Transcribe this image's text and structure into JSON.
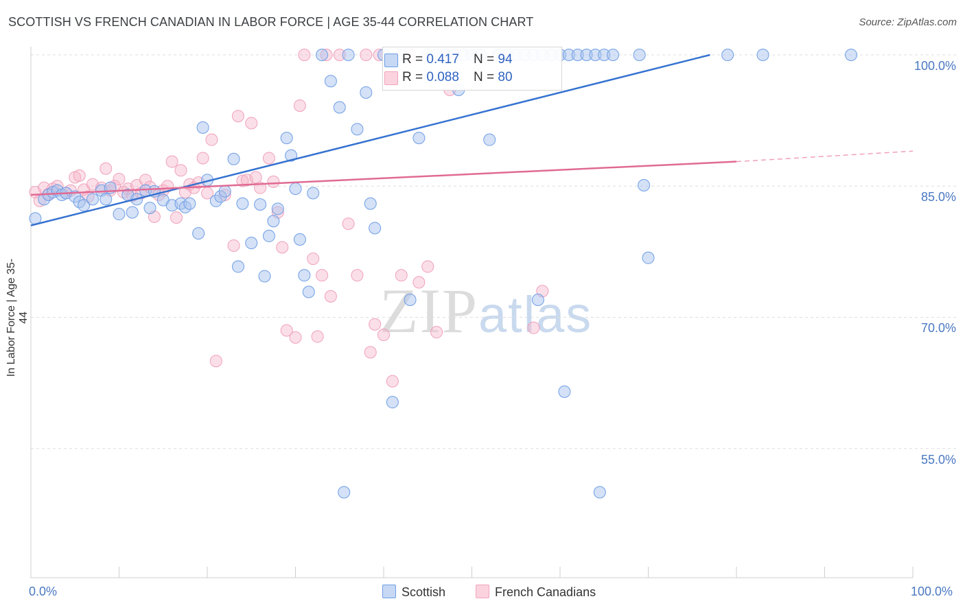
{
  "title": "SCOTTISH VS FRENCH CANADIAN IN LABOR FORCE | AGE 35-44 CORRELATION CHART",
  "source": "Source: ZipAtlas.com",
  "watermark": {
    "zip": "ZIP",
    "atlas": "atlas"
  },
  "legend": {
    "r_label": "R = ",
    "n_label": "N = ",
    "scottish": {
      "r": "0.417",
      "n": "94",
      "color": "#a9c4ee"
    },
    "french": {
      "r": "0.088",
      "n": "80",
      "color": "#f7b9cc"
    }
  },
  "bottom_legend": {
    "scottish": "Scottish",
    "french": "French Canadians"
  },
  "chart_data": {
    "type": "scatter",
    "title": "SCOTTISH VS FRENCH CANADIAN IN LABOR FORCE | AGE 35-44 CORRELATION CHART",
    "xlabel": "",
    "ylabel": "In Labor Force | Age 35-44",
    "xlim": [
      0,
      100
    ],
    "ylim": [
      40,
      102
    ],
    "x_tick_labels": [
      "0.0%",
      "100.0%"
    ],
    "y_ticks": [
      {
        "value": 100.0,
        "label": "100.0%"
      },
      {
        "value": 85.0,
        "label": "85.0%"
      },
      {
        "value": 70.0,
        "label": "70.0%"
      },
      {
        "value": 55.0,
        "label": "55.0%"
      }
    ],
    "grid": true,
    "series": [
      {
        "name": "Scottish",
        "color": "#6f9ee6",
        "trend": {
          "x": [
            0,
            77
          ],
          "y": [
            80.5,
            100.0
          ],
          "color": "#3572d0"
        },
        "points": [
          [
            0.5,
            81.3
          ],
          [
            1.5,
            83.5
          ],
          [
            2,
            84
          ],
          [
            2.5,
            84.3
          ],
          [
            3,
            84.5
          ],
          [
            3.5,
            84
          ],
          [
            4,
            84.2
          ],
          [
            5,
            83.8
          ],
          [
            5.5,
            83.2
          ],
          [
            6,
            82.8
          ],
          [
            7,
            83.5
          ],
          [
            8,
            84.5
          ],
          [
            8.5,
            83.5
          ],
          [
            9,
            84.8
          ],
          [
            10,
            81.8
          ],
          [
            11,
            84
          ],
          [
            11.5,
            82
          ],
          [
            12,
            83.5
          ],
          [
            13,
            84.5
          ],
          [
            13.5,
            82.5
          ],
          [
            14,
            84.4
          ],
          [
            15,
            83.4
          ],
          [
            16,
            82.8
          ],
          [
            17,
            83
          ],
          [
            17.5,
            82.6
          ],
          [
            18,
            83
          ],
          [
            19,
            79.6
          ],
          [
            19.5,
            91.7
          ],
          [
            20,
            85.7
          ],
          [
            21,
            83.3
          ],
          [
            21.5,
            83.8
          ],
          [
            22,
            84.4
          ],
          [
            23,
            88.1
          ],
          [
            23.5,
            75.8
          ],
          [
            24,
            83
          ],
          [
            25,
            78.5
          ],
          [
            26,
            82.9
          ],
          [
            26.5,
            74.7
          ],
          [
            27,
            79.3
          ],
          [
            27.5,
            81
          ],
          [
            28,
            82.4
          ],
          [
            29,
            90.5
          ],
          [
            29.5,
            88.5
          ],
          [
            30,
            84.7
          ],
          [
            30.5,
            78.9
          ],
          [
            31,
            74.8
          ],
          [
            31.5,
            72.9
          ],
          [
            32,
            84.2
          ],
          [
            33,
            100
          ],
          [
            34,
            97
          ],
          [
            35,
            94
          ],
          [
            35.5,
            50
          ],
          [
            36,
            100
          ],
          [
            37,
            91.5
          ],
          [
            38,
            95.7
          ],
          [
            38.5,
            83
          ],
          [
            39,
            80.2
          ],
          [
            40,
            100
          ],
          [
            41,
            60.3
          ],
          [
            42,
            100
          ],
          [
            43,
            72
          ],
          [
            44,
            90.5
          ],
          [
            45,
            100
          ],
          [
            46,
            100
          ],
          [
            47,
            100
          ],
          [
            48,
            100
          ],
          [
            48.5,
            96
          ],
          [
            49,
            100
          ],
          [
            50,
            100
          ],
          [
            51,
            100
          ],
          [
            52,
            90.3
          ],
          [
            53,
            100
          ],
          [
            54,
            100
          ],
          [
            55,
            100
          ],
          [
            56,
            100
          ],
          [
            57,
            100
          ],
          [
            57.5,
            72
          ],
          [
            58,
            100
          ],
          [
            59,
            100
          ],
          [
            60,
            100
          ],
          [
            60.5,
            61.5
          ],
          [
            61,
            100
          ],
          [
            62,
            100
          ],
          [
            63,
            100
          ],
          [
            64,
            100
          ],
          [
            64.5,
            50
          ],
          [
            65,
            100
          ],
          [
            66,
            100
          ],
          [
            69,
            100
          ],
          [
            69.5,
            85.1
          ],
          [
            70,
            76.8
          ],
          [
            79,
            100
          ],
          [
            83,
            100
          ],
          [
            93,
            100
          ]
        ]
      },
      {
        "name": "French Canadians",
        "color": "#f3a3bb",
        "trend": {
          "x": [
            0,
            80
          ],
          "y": [
            84.0,
            87.8
          ],
          "color": "#e06a94",
          "dashed_to": [
            100,
            89.0
          ]
        },
        "points": [
          [
            0.5,
            84.3
          ],
          [
            1,
            83.3
          ],
          [
            1.5,
            84.8
          ],
          [
            2,
            84.1
          ],
          [
            2.5,
            84.7
          ],
          [
            3,
            85
          ],
          [
            4,
            84.2
          ],
          [
            4.5,
            84.5
          ],
          [
            5,
            86
          ],
          [
            5.5,
            86.2
          ],
          [
            6,
            84.6
          ],
          [
            6.5,
            83.8
          ],
          [
            7,
            85.2
          ],
          [
            8,
            84.8
          ],
          [
            8.5,
            87
          ],
          [
            9,
            84.5
          ],
          [
            9.5,
            85
          ],
          [
            10,
            85.8
          ],
          [
            10.5,
            84.3
          ],
          [
            11,
            84.7
          ],
          [
            11.5,
            83.9
          ],
          [
            12,
            85.1
          ],
          [
            12.5,
            84.2
          ],
          [
            13,
            85.7
          ],
          [
            13.5,
            84.9
          ],
          [
            14,
            81.5
          ],
          [
            14.5,
            84
          ],
          [
            15,
            84.5
          ],
          [
            15.5,
            85
          ],
          [
            16,
            87.8
          ],
          [
            16.5,
            81.4
          ],
          [
            17,
            86.8
          ],
          [
            17.5,
            84.3
          ],
          [
            18,
            85.2
          ],
          [
            18.5,
            84.8
          ],
          [
            19,
            85.4
          ],
          [
            19.5,
            88.2
          ],
          [
            20,
            84.2
          ],
          [
            20.5,
            90.3
          ],
          [
            21,
            65
          ],
          [
            22,
            84
          ],
          [
            23,
            78.2
          ],
          [
            23.5,
            93
          ],
          [
            24,
            85.6
          ],
          [
            24.5,
            85.7
          ],
          [
            25,
            92.2
          ],
          [
            25.5,
            86
          ],
          [
            26,
            84.8
          ],
          [
            27,
            88.2
          ],
          [
            27.5,
            85.5
          ],
          [
            28,
            82
          ],
          [
            28.5,
            78
          ],
          [
            29,
            68.5
          ],
          [
            30,
            67.7
          ],
          [
            30.5,
            94.2
          ],
          [
            31,
            100
          ],
          [
            32,
            76.7
          ],
          [
            32.5,
            67.8
          ],
          [
            33,
            74.8
          ],
          [
            33.5,
            100
          ],
          [
            34,
            72.4
          ],
          [
            35,
            100
          ],
          [
            36,
            80.7
          ],
          [
            37,
            74.8
          ],
          [
            38,
            100
          ],
          [
            38.5,
            66
          ],
          [
            39,
            69.2
          ],
          [
            39.5,
            100
          ],
          [
            40,
            68
          ],
          [
            41,
            62.7
          ],
          [
            42,
            74.8
          ],
          [
            43,
            100
          ],
          [
            44,
            74
          ],
          [
            45,
            75.8
          ],
          [
            46,
            68.3
          ],
          [
            47,
            100
          ],
          [
            47.5,
            96
          ],
          [
            48,
            100
          ],
          [
            57,
            68.8
          ],
          [
            58,
            73
          ]
        ]
      }
    ]
  }
}
